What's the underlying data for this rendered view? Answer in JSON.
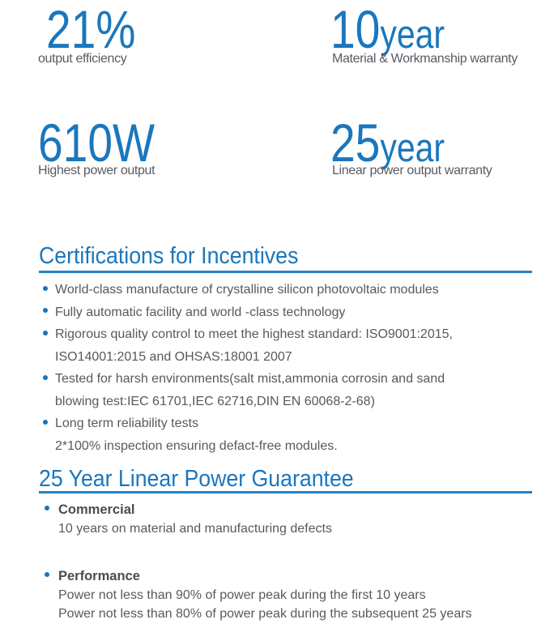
{
  "colors": {
    "accent_blue": "#1a77bd",
    "rule_blue": "#2583c6",
    "label_gray": "#5a5b62",
    "body_gray": "#58595b",
    "strong_gray": "#4b4c4e"
  },
  "stats": [
    {
      "value": "21%",
      "unit": "",
      "label": "output efficiency"
    },
    {
      "value": "10",
      "unit": "year",
      "label": "Material & Workmanship warranty"
    },
    {
      "value": "610W",
      "unit": "",
      "label": "Highest power output"
    },
    {
      "value": "25",
      "unit": "year",
      "label": "Linear power output warranty"
    }
  ],
  "certifications": {
    "title": "Certifications for Incentives",
    "bullets": [
      {
        "lines": [
          "World-class manufacture of crystalline silicon photovoltaic modules"
        ]
      },
      {
        "lines": [
          "Fully automatic facility and world -class technology"
        ]
      },
      {
        "lines": [
          "Rigorous quality control to meet the highest standard: ISO9001:2015,",
          "ISO14001:2015 and OHSAS:18001 2007"
        ]
      },
      {
        "lines": [
          "Tested for harsh environments(salt mist,ammonia corrosin and sand",
          "blowing test:IEC 61701,IEC 62716,DIN EN 60068-2-68)"
        ]
      },
      {
        "lines": [
          "Long term reliability tests",
          "2*100% inspection ensuring defact-free modules."
        ]
      }
    ]
  },
  "guarantee": {
    "title": "25 Year Linear Power Guarantee",
    "items": [
      {
        "heading": "Commercial",
        "lines": [
          "10 years on material and manufacturing defects"
        ]
      },
      {
        "heading": "Performance",
        "lines": [
          "Power not less than 90% of power peak during the first 10 years",
          "Power not less than 80% of power peak during the subsequent 25 years"
        ]
      }
    ]
  }
}
